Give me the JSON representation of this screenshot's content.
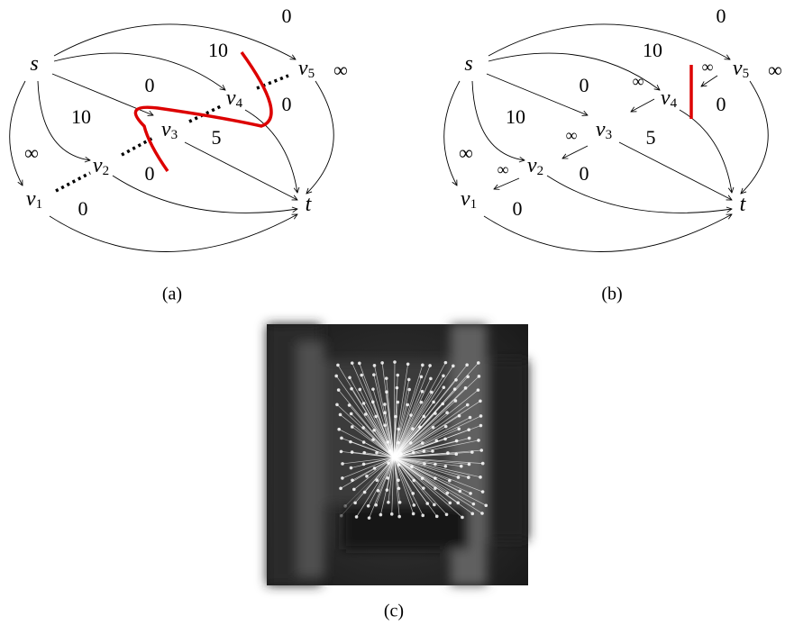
{
  "panels": [
    {
      "caption": "(a)",
      "nodes": [
        {
          "name": "s"
        },
        {
          "name": "v",
          "sub": "1"
        },
        {
          "name": "v",
          "sub": "2"
        },
        {
          "name": "v",
          "sub": "3"
        },
        {
          "name": "v",
          "sub": "4"
        },
        {
          "name": "v",
          "sub": "5"
        },
        {
          "name": "t"
        }
      ],
      "edge_labels": [
        "0",
        "10",
        "0",
        "0",
        "10",
        "5",
        "∞",
        "0",
        "0",
        "∞"
      ]
    },
    {
      "caption": "(b)",
      "nodes": [
        {
          "name": "s"
        },
        {
          "name": "v",
          "sub": "1"
        },
        {
          "name": "v",
          "sub": "2"
        },
        {
          "name": "v",
          "sub": "3"
        },
        {
          "name": "v",
          "sub": "4"
        },
        {
          "name": "v",
          "sub": "5"
        },
        {
          "name": "t"
        }
      ],
      "edge_labels": [
        "0",
        "10",
        "0",
        "0",
        "10",
        "5",
        "∞",
        "0",
        "0",
        "∞"
      ],
      "reverse_labels": [
        "∞",
        "∞",
        "∞",
        "∞"
      ]
    },
    {
      "caption": "(c)"
    }
  ]
}
